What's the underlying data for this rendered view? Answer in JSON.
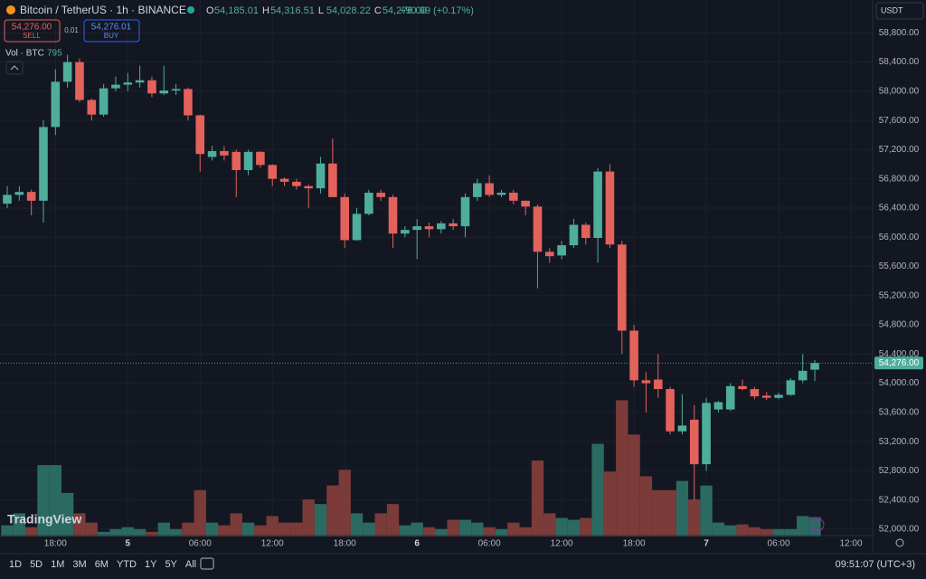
{
  "header": {
    "title": "Bitcoin / TetherUS · 1h · BINANCE",
    "ohlc": [
      {
        "label": "O",
        "value": "54,185.01"
      },
      {
        "label": "H",
        "value": "54,316.51"
      },
      {
        "label": "L",
        "value": "54,028.22"
      },
      {
        "label": "C",
        "value": "54,276.00"
      }
    ],
    "change": "+90.99 (+0.17%)",
    "sell_price": "54,276.00",
    "sell_label": "SELL",
    "spread": "0.01",
    "buy_price": "54,276.01",
    "buy_label": "BUY",
    "currency": "USDT",
    "logo": "TradingView"
  },
  "toolbar": {
    "ranges": [
      "1D",
      "5D",
      "1M",
      "3M",
      "6M",
      "YTD",
      "1Y",
      "5Y",
      "All"
    ],
    "clock": "09:51:07 (UTC+3)"
  },
  "chart_data": {
    "type": "candlestick",
    "up_color": "#4fae9b",
    "down_color": "#e3625b",
    "volume_up_color": "#2b6a61",
    "volume_down_color": "#7b3b39",
    "volume_label": "Vol · BTC",
    "ylim": [
      51900,
      59250
    ],
    "volume_ylim": [
      0,
      22000
    ],
    "xlim": [
      -0.6,
      71.8
    ],
    "yticks": [
      {
        "value": 52000,
        "label": "52,000.00"
      },
      {
        "value": 52400,
        "label": "52,400.00"
      },
      {
        "value": 52800,
        "label": "52,800.00"
      },
      {
        "value": 53200,
        "label": "53,200.00"
      },
      {
        "value": 53600,
        "label": "53,600.00"
      },
      {
        "value": 54000,
        "label": "54,000.00"
      },
      {
        "value": 54400,
        "label": "54,400.00"
      },
      {
        "value": 54800,
        "label": "54,800.00"
      },
      {
        "value": 55200,
        "label": "55,200.00"
      },
      {
        "value": 55600,
        "label": "55,600.00"
      },
      {
        "value": 56000,
        "label": "56,000.00"
      },
      {
        "value": 56400,
        "label": "56,400.00"
      },
      {
        "value": 56800,
        "label": "56,800.00"
      },
      {
        "value": 57200,
        "label": "57,200.00"
      },
      {
        "value": 57600,
        "label": "57,600.00"
      },
      {
        "value": 58000,
        "label": "58,000.00"
      },
      {
        "value": 58400,
        "label": "58,400.00"
      },
      {
        "value": 58800,
        "label": "58,800.00"
      }
    ],
    "xticks": [
      {
        "value": 4,
        "label": "18:00"
      },
      {
        "value": 10,
        "label": "5"
      },
      {
        "value": 16,
        "label": "06:00"
      },
      {
        "value": 22,
        "label": "12:00"
      },
      {
        "value": 28,
        "label": "18:00"
      },
      {
        "value": 34,
        "label": "6"
      },
      {
        "value": 40,
        "label": "06:00"
      },
      {
        "value": 46,
        "label": "12:00"
      },
      {
        "value": 52,
        "label": "18:00"
      },
      {
        "value": 58,
        "label": "7"
      },
      {
        "value": 64,
        "label": "06:00"
      },
      {
        "value": 70,
        "label": "12:00"
      }
    ],
    "last_price": {
      "value": 54276,
      "label": "54,276.00"
    },
    "open": [
      56460,
      56580,
      56620,
      56500,
      57510,
      58130,
      58400,
      57880,
      57680,
      58040,
      58090,
      58120,
      58150,
      57970,
      58010,
      58030,
      57670,
      57100,
      57180,
      57170,
      56920,
      57170,
      56990,
      56800,
      56760,
      56700,
      56670,
      57010,
      56550,
      55960,
      56320,
      56610,
      56550,
      56050,
      56100,
      56150,
      56110,
      56190,
      56150,
      56550,
      56740,
      56580,
      56610,
      56500,
      56420,
      55800,
      55750,
      55890,
      56170,
      55990,
      56900,
      55900,
      54720,
      54040,
      54050,
      53920,
      53340,
      53500,
      52890,
      53640,
      53640,
      53960,
      53920,
      53830,
      53800,
      53840,
      54040,
      54185.01
    ],
    "high": [
      56700,
      56700,
      56650,
      57600,
      58300,
      58500,
      58450,
      57900,
      58100,
      58200,
      58250,
      58350,
      58200,
      58350,
      58100,
      58050,
      57680,
      57250,
      57250,
      57200,
      57200,
      57180,
      57000,
      56820,
      56800,
      56720,
      57100,
      57350,
      56600,
      56400,
      56650,
      56650,
      56580,
      56150,
      56250,
      56200,
      56220,
      56250,
      56600,
      56800,
      56850,
      56650,
      56650,
      56500,
      56450,
      55850,
      55950,
      56250,
      56200,
      56950,
      57000,
      55950,
      54800,
      54150,
      54400,
      53950,
      53850,
      53700,
      53800,
      53760,
      54000,
      54050,
      53950,
      53880,
      53870,
      54070,
      54400,
      54316.51
    ],
    "low": [
      56400,
      56500,
      56300,
      56200,
      57400,
      58050,
      57850,
      57600,
      57650,
      58000,
      58000,
      58050,
      57920,
      57950,
      57950,
      57600,
      56900,
      57050,
      57050,
      56550,
      56850,
      56950,
      56700,
      56700,
      56650,
      56400,
      56600,
      56550,
      55850,
      55950,
      56300,
      56500,
      55850,
      56000,
      55700,
      56000,
      56050,
      56100,
      56000,
      56500,
      56550,
      56550,
      56450,
      56300,
      55300,
      55650,
      55700,
      55850,
      55900,
      55650,
      55850,
      54400,
      53950,
      53600,
      53800,
      53300,
      53300,
      52400,
      52800,
      53600,
      53620,
      53900,
      53780,
      53770,
      53780,
      53830,
      54000,
      54028.22
    ],
    "close": [
      56580,
      56620,
      56500,
      57510,
      58130,
      58400,
      57880,
      57680,
      58040,
      58090,
      58120,
      58150,
      57970,
      58010,
      58030,
      57670,
      57140,
      57180,
      57120,
      56920,
      57170,
      56990,
      56800,
      56760,
      56700,
      56670,
      57010,
      56550,
      55960,
      56320,
      56610,
      56550,
      56050,
      56100,
      56150,
      56110,
      56190,
      56150,
      56550,
      56740,
      56580,
      56610,
      56500,
      56420,
      55800,
      55740,
      55890,
      56170,
      55990,
      56900,
      55900,
      54720,
      54040,
      54000,
      53920,
      53340,
      53420,
      52890,
      53730,
      53740,
      53960,
      53920,
      53820,
      53800,
      53840,
      54040,
      54170,
      54276
    ],
    "volume": [
      456,
      950,
      380,
      2926,
      2926,
      1786,
      950,
      570,
      190,
      304,
      380,
      304,
      190,
      570,
      304,
      570,
      1900,
      570,
      456,
      950,
      570,
      456,
      836,
      570,
      570,
      1520,
      1330,
      2090,
      2736,
      950,
      570,
      950,
      1330,
      456,
      570,
      380,
      304,
      684,
      684,
      570,
      380,
      304,
      570,
      380,
      3116,
      950,
      760,
      684,
      760,
      3800,
      2660,
      5586,
      4180,
      2470,
      1900,
      1900,
      2280,
      1520,
      2090,
      570,
      456,
      494,
      380,
      304,
      304,
      304,
      836,
      795
    ]
  }
}
